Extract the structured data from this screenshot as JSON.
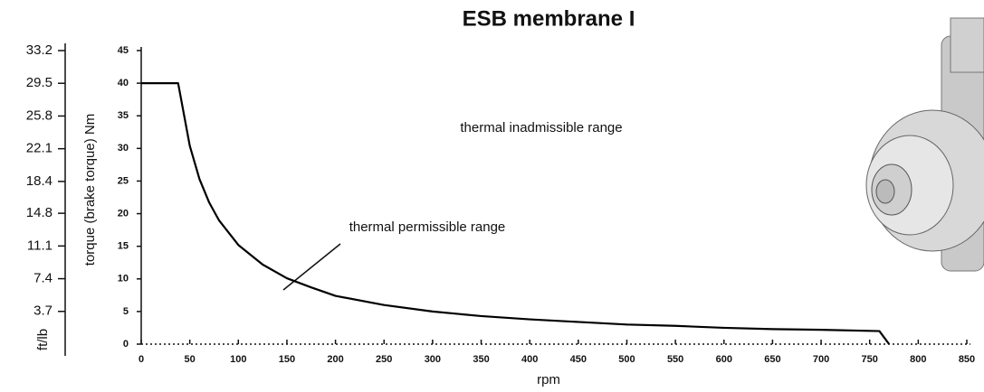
{
  "chart_data": {
    "type": "line",
    "title": "ESB membrane I",
    "x": [
      0,
      38,
      50,
      60,
      70,
      80,
      100,
      125,
      150,
      175,
      200,
      250,
      300,
      350,
      400,
      450,
      500,
      550,
      600,
      650,
      700,
      760,
      770
    ],
    "series": [
      {
        "name": "torque",
        "color": "#000000",
        "values": [
          40,
          40,
          30.4,
          25.3,
          21.7,
          19,
          15.2,
          12.2,
          10.1,
          8.7,
          7.4,
          6,
          5,
          4.3,
          3.8,
          3.4,
          3,
          2.8,
          2.5,
          2.3,
          2.2,
          2,
          0
        ]
      }
    ],
    "xlim": [
      0,
      850
    ],
    "xticks": [
      0,
      50,
      100,
      150,
      200,
      250,
      300,
      350,
      400,
      450,
      500,
      550,
      600,
      650,
      700,
      750,
      800,
      850
    ],
    "ylim": [
      0,
      45
    ],
    "yticks": [
      0,
      5,
      10,
      15,
      20,
      25,
      30,
      35,
      40,
      45
    ],
    "y2lim": [
      0,
      33.2
    ],
    "y2ticks": [
      3.7,
      7.4,
      11.1,
      14.8,
      18.4,
      22.1,
      25.8,
      29.5,
      33.2
    ],
    "x_label": "rpm",
    "y_label": "torque (brake torque) Nm",
    "y2_label": "ft/lb",
    "annotations": [
      "thermal inadmissible range",
      "thermal permissible range"
    ]
  }
}
